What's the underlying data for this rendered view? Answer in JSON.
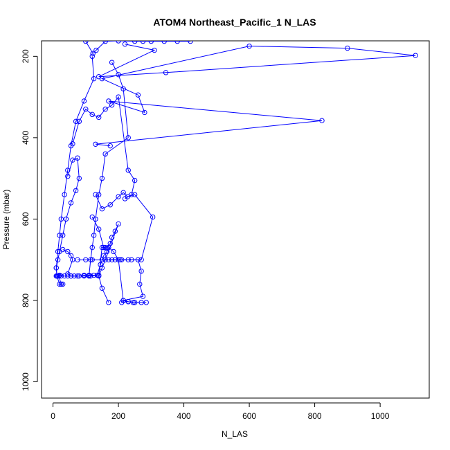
{
  "chart_data": {
    "type": "line",
    "title": "ATOM4 Northeast_Pacific_1 N_LAS",
    "xlabel": "N_LAS",
    "ylabel": "Pressure (mbar)",
    "xlim": [
      -35,
      1150
    ],
    "ylim": [
      1040,
      162
    ],
    "y_reversed": true,
    "x_ticks": [
      0,
      200,
      400,
      600,
      800,
      1000
    ],
    "y_ticks": [
      200,
      400,
      600,
      800,
      1000
    ],
    "grid": false,
    "series_color": "#0000ff",
    "series": [
      {
        "x": [
          100,
          122,
          132,
          160,
          200,
          250,
          275,
          300,
          340,
          380,
          420
        ],
        "y": [
          163,
          193,
          185,
          163,
          162,
          163,
          163,
          163,
          163,
          163,
          163
        ]
      },
      {
        "x": [
          120,
          125,
          95,
          70,
          55,
          45,
          35,
          25,
          20,
          15,
          10,
          12,
          20,
          25
        ],
        "y": [
          200,
          255,
          310,
          360,
          420,
          480,
          540,
          600,
          640,
          680,
          720,
          740,
          760,
          760
        ]
      },
      {
        "x": [
          220,
          310,
          140,
          345,
          1108,
          900,
          600,
          150,
          260,
          280,
          170,
          822,
          130,
          175
        ],
        "y": [
          170,
          185,
          250,
          240,
          198,
          180,
          175,
          255,
          295,
          338,
          310,
          358,
          416,
          420
        ]
      },
      {
        "x": [
          180,
          200,
          215,
          230,
          160,
          150,
          140,
          130,
          125,
          120,
          115,
          110
        ],
        "y": [
          215,
          245,
          280,
          400,
          440,
          500,
          540,
          600,
          640,
          670,
          700,
          740
        ]
      },
      {
        "x": [
          60,
          80,
          100,
          120,
          140,
          160,
          180,
          200,
          230,
          250,
          240,
          220
        ],
        "y": [
          415,
          360,
          330,
          343,
          350,
          330,
          320,
          300,
          480,
          505,
          540,
          550
        ]
      },
      {
        "x": [
          45,
          60,
          75,
          80,
          70,
          55,
          40,
          30,
          20,
          15,
          10,
          12,
          18,
          25,
          30
        ],
        "y": [
          495,
          455,
          450,
          500,
          530,
          560,
          600,
          640,
          680,
          700,
          720,
          740,
          740,
          760,
          760
        ]
      },
      {
        "x": [
          130,
          150,
          175,
          200,
          215,
          228,
          250,
          305,
          270,
          240,
          210,
          190,
          170
        ],
        "y": [
          540,
          575,
          565,
          545,
          535,
          545,
          540,
          595,
          700,
          700,
          700,
          700,
          700
        ]
      },
      {
        "x": [
          120,
          140,
          155,
          165,
          175,
          180,
          190,
          200,
          160,
          150,
          140,
          150,
          170
        ],
        "y": [
          595,
          625,
          670,
          672,
          660,
          645,
          630,
          612,
          700,
          720,
          740,
          770,
          805
        ]
      },
      {
        "x": [
          75,
          100,
          120,
          150,
          180,
          205,
          230,
          260,
          270,
          265,
          275,
          215,
          210,
          230,
          245
        ],
        "y": [
          700,
          700,
          700,
          700,
          700,
          700,
          700,
          700,
          728,
          760,
          790,
          800,
          805,
          803,
          805
        ]
      },
      {
        "x": [
          10,
          15,
          20,
          25,
          35,
          45,
          55,
          65,
          80,
          95,
          110,
          125,
          140,
          150,
          160
        ],
        "y": [
          740,
          740,
          738,
          740,
          740,
          740,
          740,
          740,
          740,
          738,
          738,
          738,
          738,
          670,
          670
        ]
      },
      {
        "x": [
          30,
          45,
          55,
          60,
          45,
          55,
          75,
          95,
          115,
          135,
          145,
          155,
          165,
          170,
          185,
          200,
          215,
          230,
          250,
          270,
          285
        ],
        "y": [
          675,
          680,
          690,
          700,
          735,
          740,
          740,
          740,
          740,
          738,
          712,
          690,
          680,
          670,
          680,
          700,
          800,
          803,
          805,
          805,
          805
        ]
      }
    ]
  }
}
